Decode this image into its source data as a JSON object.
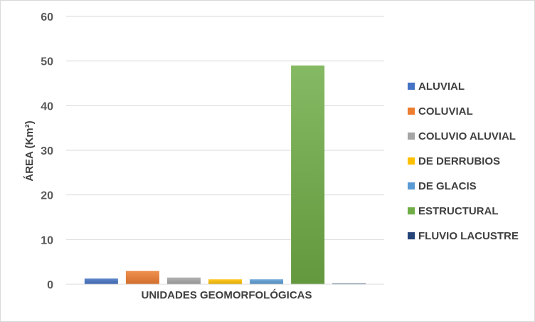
{
  "chart_data": {
    "type": "bar",
    "title": "",
    "xlabel": "UNIDADES GEOMORFOLÓGICAS",
    "ylabel": "ÁREA (Km²)",
    "ylim": [
      0,
      60
    ],
    "yticks": [
      0,
      10,
      20,
      30,
      40,
      50,
      60
    ],
    "grid": true,
    "legend_position": "right",
    "series": [
      {
        "name": "ALUVIAL",
        "values": [
          1.3
        ],
        "color": "#4472c4"
      },
      {
        "name": "COLUVIAL",
        "values": [
          3.0
        ],
        "color": "#ed7d31"
      },
      {
        "name": "COLUVIO ALUVIAL",
        "values": [
          1.5
        ],
        "color": "#a5a5a5"
      },
      {
        "name": "DE DERRUBIOS",
        "values": [
          1.1
        ],
        "color": "#ffc000"
      },
      {
        "name": "DE GLACIS",
        "values": [
          1.1
        ],
        "color": "#5b9bd5"
      },
      {
        "name": "ESTRUCTURAL",
        "values": [
          49.0
        ],
        "color": "#70ad47"
      },
      {
        "name": "FLUVIO LACUSTRE",
        "values": [
          0.2
        ],
        "color": "#264478"
      }
    ]
  }
}
